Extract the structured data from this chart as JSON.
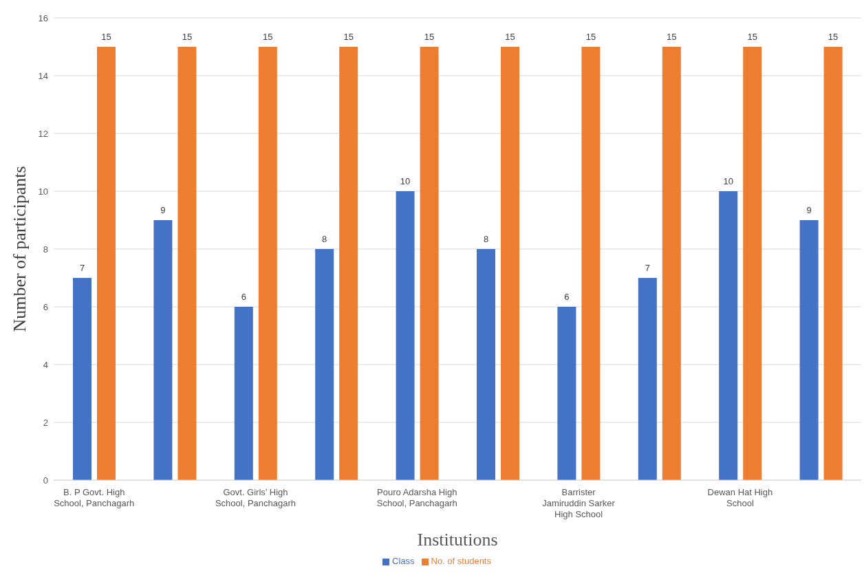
{
  "chart_data": {
    "type": "bar",
    "xlabel": "Institutions",
    "ylabel": "Number of participants",
    "categories": [
      "B. P Govt. High School, Panchagarh",
      null,
      "Govt. Girls’ High School, Panchagarh",
      null,
      "Pouro Adarsha High School, Panchagarh",
      null,
      "Barrister Jamiruddin Sarker High School",
      null,
      "Dewan Hat High School",
      null
    ],
    "series": [
      {
        "name": "Class",
        "color": "#4472c4",
        "values": [
          7,
          9,
          6,
          8,
          10,
          8,
          6,
          7,
          10,
          9
        ]
      },
      {
        "name": "No. of students",
        "color": "#ed7d31",
        "values": [
          15,
          15,
          15,
          15,
          15,
          15,
          15,
          15,
          15,
          15
        ]
      }
    ],
    "ylim": [
      0,
      16
    ],
    "yticks": [
      0,
      2,
      4,
      6,
      8,
      10,
      12,
      14,
      16
    ],
    "grid": "y",
    "legend": "bottom",
    "data_labels": true
  }
}
